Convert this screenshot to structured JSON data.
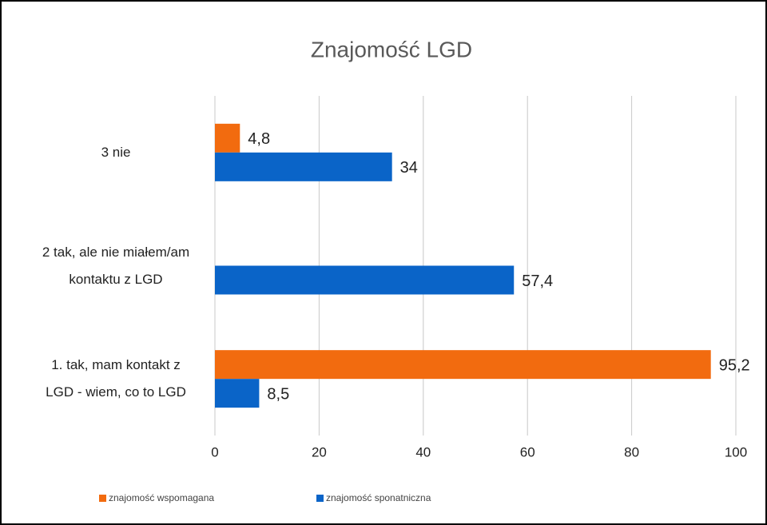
{
  "chart_data": {
    "type": "barh",
    "title": "Znajomość LGD",
    "categories": [
      "1. tak, mam kontakt z LGD - wiem, co to LGD",
      "2 tak, ale nie miałem/am kontaktu z LGD",
      "3 nie"
    ],
    "series": [
      {
        "name": "znajomość wspomagana",
        "color": "#f26b0f",
        "values": [
          95.2,
          null,
          4.8
        ],
        "value_labels": [
          "95,2",
          null,
          "4,8"
        ]
      },
      {
        "name": "znajomość sponatniczna",
        "color": "#0a64c8",
        "values": [
          8.5,
          57.4,
          34
        ],
        "value_labels": [
          "8,5",
          "57,4",
          "34"
        ]
      }
    ],
    "xlim": [
      0,
      100
    ],
    "xticks": [
      0,
      20,
      40,
      60,
      80,
      100
    ],
    "grid": true,
    "legend": "bottom"
  }
}
